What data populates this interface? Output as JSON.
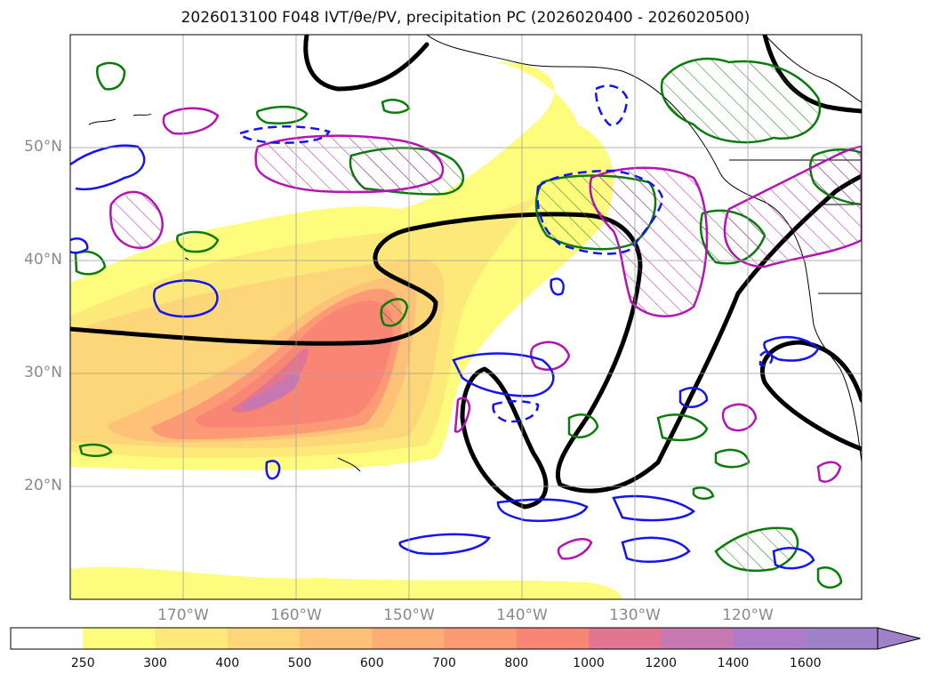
{
  "title": "2026013100 F048 IVT/θe/PV, precipitation PC (2026020400 - 2026020500)",
  "map": {
    "lat_labels": [
      "50°N",
      "40°N",
      "30°N",
      "20°N"
    ],
    "lon_labels": [
      "170°W",
      "160°W",
      "150°W",
      "140°W",
      "130°W",
      "120°W"
    ],
    "lat_values": [
      50,
      40,
      30,
      20
    ],
    "lon_values": [
      -170,
      -160,
      -150,
      -140,
      -130,
      -120
    ],
    "extent": {
      "lon_min": -180,
      "lon_max": -110,
      "lat_min": 10,
      "lat_max": 60
    }
  },
  "colorbar": {
    "labels": [
      "250",
      "300",
      "400",
      "500",
      "600",
      "700",
      "800",
      "1000",
      "1200",
      "1400",
      "1600"
    ],
    "colors": [
      "#ffffff",
      "#fdfc7c",
      "#fce97a",
      "#fdd679",
      "#fdc278",
      "#fdae77",
      "#fc9a76",
      "#f98675",
      "#e27592",
      "#c878b0",
      "#ae7bcb",
      "#9e81c8"
    ]
  },
  "colors": {
    "ivt_low": "#fdfc7c",
    "ivt_mid": "#fdc278",
    "ivt_high": "#f98675",
    "ivt_peak": "#c77bb3",
    "pv_contour": "#000000",
    "green_contour": "#0a7c0a",
    "blue_contour": "#1414f0",
    "magenta_contour": "#b414b4"
  }
}
